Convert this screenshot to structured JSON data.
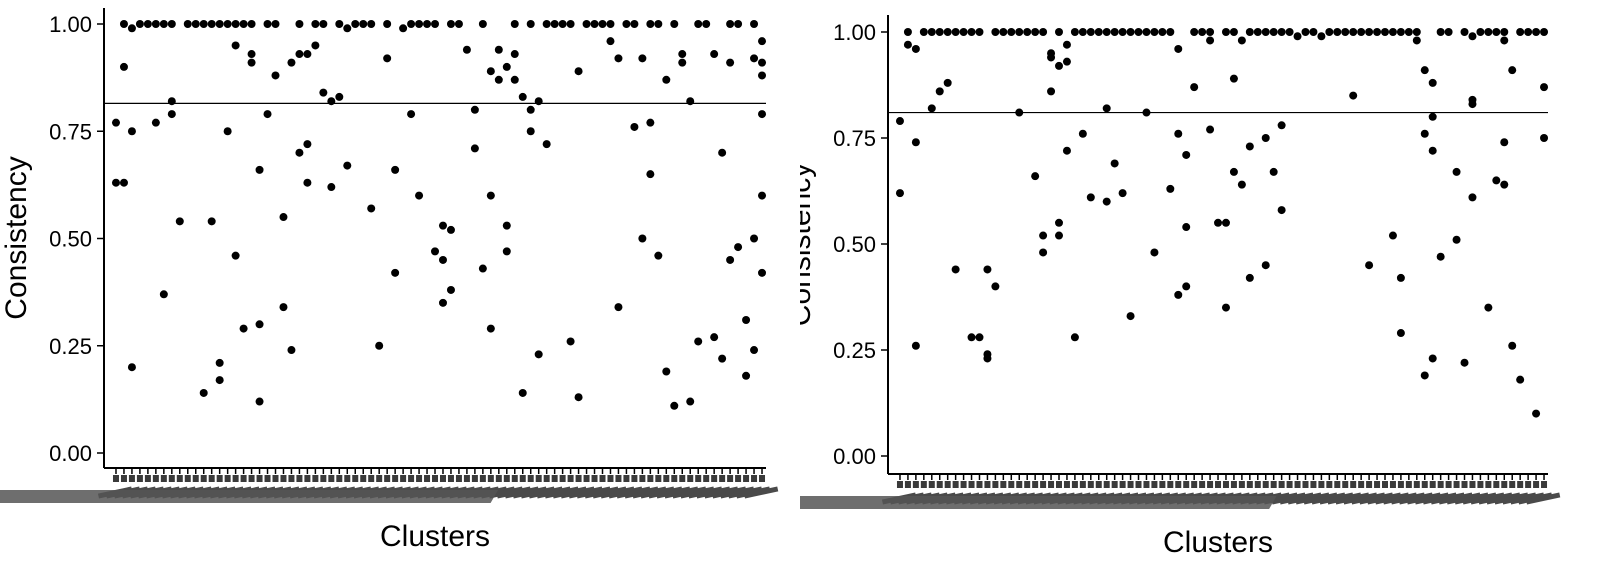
{
  "chart_data": [
    {
      "type": "scatter",
      "xlabel": "Clusters",
      "ylabel": "Consistency",
      "ylim": [
        0,
        1
      ],
      "yticks": [
        "0.00",
        "0.25",
        "0.50",
        "0.75",
        "1.00"
      ],
      "yticks_values": [
        0,
        0.25,
        0.5,
        0.75,
        1.0
      ],
      "reference_line": 0.815,
      "grid": false,
      "n_clusters": 82,
      "x_tick_labels_note": "82 rotated category labels, unreadable",
      "points": [
        [
          0,
          0.63
        ],
        [
          0,
          0.77
        ],
        [
          1,
          0.63
        ],
        [
          1,
          0.9
        ],
        [
          1,
          1.0
        ],
        [
          2,
          0.75
        ],
        [
          2,
          0.99
        ],
        [
          2,
          0.2
        ],
        [
          3,
          1.0
        ],
        [
          4,
          1.0
        ],
        [
          5,
          0.77
        ],
        [
          5,
          1.0
        ],
        [
          6,
          0.37
        ],
        [
          6,
          1.0
        ],
        [
          7,
          0.82
        ],
        [
          7,
          0.79
        ],
        [
          7,
          1.0
        ],
        [
          8,
          0.54
        ],
        [
          9,
          1.0
        ],
        [
          10,
          1.0
        ],
        [
          11,
          0.14
        ],
        [
          11,
          1.0
        ],
        [
          12,
          0.54
        ],
        [
          12,
          1.0
        ],
        [
          13,
          0.21
        ],
        [
          13,
          0.17
        ],
        [
          13,
          1.0
        ],
        [
          14,
          0.75
        ],
        [
          14,
          1.0
        ],
        [
          15,
          0.95
        ],
        [
          15,
          0.46
        ],
        [
          15,
          1.0
        ],
        [
          16,
          0.29
        ],
        [
          16,
          1.0
        ],
        [
          17,
          0.91
        ],
        [
          17,
          0.93
        ],
        [
          17,
          1.0
        ],
        [
          18,
          0.12
        ],
        [
          18,
          0.3
        ],
        [
          18,
          0.66
        ],
        [
          19,
          0.79
        ],
        [
          19,
          1.0
        ],
        [
          20,
          0.88
        ],
        [
          20,
          1.0
        ],
        [
          21,
          0.55
        ],
        [
          21,
          0.34
        ],
        [
          22,
          0.91
        ],
        [
          22,
          0.24
        ],
        [
          23,
          0.7
        ],
        [
          23,
          0.93
        ],
        [
          23,
          1.0
        ],
        [
          24,
          0.72
        ],
        [
          24,
          0.63
        ],
        [
          24,
          0.93
        ],
        [
          25,
          0.95
        ],
        [
          25,
          1.0
        ],
        [
          26,
          0.84
        ],
        [
          26,
          1.0
        ],
        [
          27,
          0.82
        ],
        [
          27,
          0.62
        ],
        [
          28,
          0.83
        ],
        [
          28,
          1.0
        ],
        [
          29,
          0.67
        ],
        [
          29,
          0.99
        ],
        [
          30,
          1.0
        ],
        [
          31,
          1.0
        ],
        [
          32,
          0.57
        ],
        [
          32,
          1.0
        ],
        [
          33,
          0.25
        ],
        [
          34,
          0.92
        ],
        [
          34,
          1.0
        ],
        [
          35,
          0.42
        ],
        [
          35,
          0.66
        ],
        [
          36,
          0.99
        ],
        [
          37,
          0.79
        ],
        [
          37,
          1.0
        ],
        [
          38,
          0.6
        ],
        [
          38,
          1.0
        ],
        [
          39,
          1.0
        ],
        [
          40,
          0.47
        ],
        [
          40,
          1.0
        ],
        [
          41,
          0.53
        ],
        [
          41,
          0.45
        ],
        [
          41,
          0.35
        ],
        [
          42,
          0.52
        ],
        [
          42,
          0.38
        ],
        [
          42,
          1.0
        ],
        [
          43,
          1.0
        ],
        [
          44,
          0.94
        ],
        [
          45,
          0.8
        ],
        [
          45,
          0.71
        ],
        [
          46,
          0.43
        ],
        [
          46,
          1.0
        ],
        [
          47,
          0.29
        ],
        [
          47,
          0.89
        ],
        [
          47,
          0.6
        ],
        [
          48,
          0.87
        ],
        [
          48,
          0.94
        ],
        [
          49,
          0.53
        ],
        [
          49,
          0.47
        ],
        [
          49,
          0.9
        ],
        [
          50,
          0.87
        ],
        [
          50,
          0.93
        ],
        [
          50,
          1.0
        ],
        [
          51,
          0.83
        ],
        [
          51,
          0.14
        ],
        [
          52,
          0.8
        ],
        [
          52,
          0.75
        ],
        [
          52,
          1.0
        ],
        [
          53,
          0.82
        ],
        [
          53,
          0.23
        ],
        [
          54,
          0.72
        ],
        [
          54,
          1.0
        ],
        [
          55,
          1.0
        ],
        [
          56,
          1.0
        ],
        [
          57,
          0.26
        ],
        [
          57,
          1.0
        ],
        [
          58,
          0.89
        ],
        [
          58,
          0.13
        ],
        [
          59,
          1.0
        ],
        [
          60,
          1.0
        ],
        [
          61,
          1.0
        ],
        [
          62,
          0.96
        ],
        [
          62,
          1.0
        ],
        [
          63,
          0.92
        ],
        [
          63,
          0.34
        ],
        [
          64,
          1.0
        ],
        [
          65,
          0.76
        ],
        [
          65,
          1.0
        ],
        [
          66,
          0.92
        ],
        [
          66,
          0.5
        ],
        [
          67,
          0.77
        ],
        [
          67,
          0.65
        ],
        [
          67,
          1.0
        ],
        [
          68,
          0.46
        ],
        [
          68,
          1.0
        ],
        [
          69,
          0.87
        ],
        [
          69,
          0.19
        ],
        [
          70,
          0.11
        ],
        [
          70,
          1.0
        ],
        [
          71,
          0.91
        ],
        [
          71,
          0.93
        ],
        [
          72,
          0.12
        ],
        [
          72,
          0.82
        ],
        [
          73,
          0.26
        ],
        [
          73,
          1.0
        ],
        [
          74,
          1.0
        ],
        [
          75,
          0.27
        ],
        [
          75,
          0.93
        ],
        [
          76,
          0.22
        ],
        [
          76,
          0.7
        ],
        [
          77,
          0.91
        ],
        [
          77,
          0.45
        ],
        [
          77,
          1.0
        ],
        [
          78,
          0.48
        ],
        [
          78,
          1.0
        ],
        [
          79,
          0.31
        ],
        [
          79,
          0.18
        ],
        [
          80,
          0.92
        ],
        [
          80,
          0.5
        ],
        [
          80,
          0.24
        ],
        [
          80,
          1.0
        ],
        [
          81,
          0.6
        ],
        [
          81,
          0.42
        ],
        [
          81,
          0.79
        ],
        [
          81,
          0.91
        ],
        [
          81,
          0.88
        ],
        [
          81,
          0.96
        ]
      ]
    },
    {
      "type": "scatter",
      "xlabel": "Clusters",
      "ylabel": "Consistency",
      "ylim": [
        0,
        1
      ],
      "yticks": [
        "0.00",
        "0.25",
        "0.50",
        "0.75",
        "1.00"
      ],
      "yticks_values": [
        0,
        0.25,
        0.5,
        0.75,
        1.0
      ],
      "reference_line": 0.81,
      "grid": false,
      "n_clusters": 82,
      "x_tick_labels_note": "82 rotated category labels, unreadable",
      "points": [
        [
          0,
          0.62
        ],
        [
          0,
          0.79
        ],
        [
          1,
          0.97
        ],
        [
          1,
          1.0
        ],
        [
          2,
          0.74
        ],
        [
          2,
          0.26
        ],
        [
          2,
          0.96
        ],
        [
          3,
          1.0
        ],
        [
          4,
          0.82
        ],
        [
          4,
          1.0
        ],
        [
          5,
          0.86
        ],
        [
          5,
          1.0
        ],
        [
          6,
          0.88
        ],
        [
          6,
          1.0
        ],
        [
          7,
          0.44
        ],
        [
          7,
          1.0
        ],
        [
          8,
          1.0
        ],
        [
          9,
          0.28
        ],
        [
          9,
          1.0
        ],
        [
          10,
          0.28
        ],
        [
          10,
          1.0
        ],
        [
          11,
          0.44
        ],
        [
          11,
          0.24
        ],
        [
          11,
          0.23
        ],
        [
          12,
          0.4
        ],
        [
          12,
          1.0
        ],
        [
          13,
          1.0
        ],
        [
          14,
          1.0
        ],
        [
          15,
          0.81
        ],
        [
          15,
          1.0
        ],
        [
          16,
          1.0
        ],
        [
          17,
          0.66
        ],
        [
          17,
          1.0
        ],
        [
          18,
          0.48
        ],
        [
          18,
          0.52
        ],
        [
          18,
          1.0
        ],
        [
          19,
          0.86
        ],
        [
          19,
          0.95
        ],
        [
          19,
          0.94
        ],
        [
          20,
          0.92
        ],
        [
          20,
          0.55
        ],
        [
          20,
          0.52
        ],
        [
          20,
          1.0
        ],
        [
          21,
          0.97
        ],
        [
          21,
          0.72
        ],
        [
          21,
          0.93
        ],
        [
          22,
          0.28
        ],
        [
          22,
          1.0
        ],
        [
          23,
          0.76
        ],
        [
          23,
          1.0
        ],
        [
          24,
          0.61
        ],
        [
          24,
          1.0
        ],
        [
          25,
          1.0
        ],
        [
          26,
          0.6
        ],
        [
          26,
          0.82
        ],
        [
          26,
          1.0
        ],
        [
          27,
          0.69
        ],
        [
          27,
          1.0
        ],
        [
          28,
          0.62
        ],
        [
          28,
          1.0
        ],
        [
          29,
          0.33
        ],
        [
          29,
          1.0
        ],
        [
          30,
          1.0
        ],
        [
          31,
          0.81
        ],
        [
          31,
          1.0
        ],
        [
          32,
          0.48
        ],
        [
          32,
          1.0
        ],
        [
          33,
          1.0
        ],
        [
          34,
          0.63
        ],
        [
          34,
          1.0
        ],
        [
          35,
          0.96
        ],
        [
          35,
          0.76
        ],
        [
          35,
          0.38
        ],
        [
          36,
          0.71
        ],
        [
          36,
          0.54
        ],
        [
          36,
          0.4
        ],
        [
          37,
          0.87
        ],
        [
          37,
          1.0
        ],
        [
          38,
          1.0
        ],
        [
          39,
          0.98
        ],
        [
          39,
          0.77
        ],
        [
          39,
          1.0
        ],
        [
          40,
          0.55
        ],
        [
          41,
          0.35
        ],
        [
          41,
          0.55
        ],
        [
          41,
          1.0
        ],
        [
          42,
          0.89
        ],
        [
          42,
          0.67
        ],
        [
          42,
          1.0
        ],
        [
          43,
          0.98
        ],
        [
          43,
          0.64
        ],
        [
          44,
          0.73
        ],
        [
          44,
          0.42
        ],
        [
          44,
          1.0
        ],
        [
          45,
          1.0
        ],
        [
          46,
          0.75
        ],
        [
          46,
          0.45
        ],
        [
          46,
          1.0
        ],
        [
          47,
          0.67
        ],
        [
          47,
          1.0
        ],
        [
          48,
          0.78
        ],
        [
          48,
          0.58
        ],
        [
          48,
          1.0
        ],
        [
          49,
          1.0
        ],
        [
          50,
          0.99
        ],
        [
          51,
          1.0
        ],
        [
          52,
          1.0
        ],
        [
          53,
          0.99
        ],
        [
          54,
          1.0
        ],
        [
          55,
          1.0
        ],
        [
          56,
          1.0
        ],
        [
          57,
          0.85
        ],
        [
          57,
          1.0
        ],
        [
          58,
          1.0
        ],
        [
          59,
          0.45
        ],
        [
          59,
          1.0
        ],
        [
          60,
          1.0
        ],
        [
          61,
          1.0
        ],
        [
          62,
          0.52
        ],
        [
          62,
          1.0
        ],
        [
          63,
          0.42
        ],
        [
          63,
          0.29
        ],
        [
          63,
          1.0
        ],
        [
          64,
          1.0
        ],
        [
          65,
          0.98
        ],
        [
          65,
          1.0
        ],
        [
          66,
          0.91
        ],
        [
          66,
          0.19
        ],
        [
          66,
          0.76
        ],
        [
          67,
          0.72
        ],
        [
          67,
          0.8
        ],
        [
          67,
          0.88
        ],
        [
          67,
          0.23
        ],
        [
          68,
          0.47
        ],
        [
          68,
          1.0
        ],
        [
          69,
          1.0
        ],
        [
          70,
          0.51
        ],
        [
          70,
          0.67
        ],
        [
          71,
          0.22
        ],
        [
          71,
          1.0
        ],
        [
          72,
          0.61
        ],
        [
          72,
          0.83
        ],
        [
          72,
          0.84
        ],
        [
          72,
          0.99
        ],
        [
          73,
          1.0
        ],
        [
          74,
          0.35
        ],
        [
          74,
          1.0
        ],
        [
          75,
          0.65
        ],
        [
          75,
          1.0
        ],
        [
          76,
          0.64
        ],
        [
          76,
          0.74
        ],
        [
          76,
          0.98
        ],
        [
          76,
          1.0
        ],
        [
          77,
          0.91
        ],
        [
          77,
          0.26
        ],
        [
          78,
          0.18
        ],
        [
          78,
          1.0
        ],
        [
          79,
          1.0
        ],
        [
          80,
          0.1
        ],
        [
          80,
          1.0
        ],
        [
          81,
          0.75
        ],
        [
          81,
          1.0
        ],
        [
          81,
          0.87
        ]
      ]
    }
  ]
}
